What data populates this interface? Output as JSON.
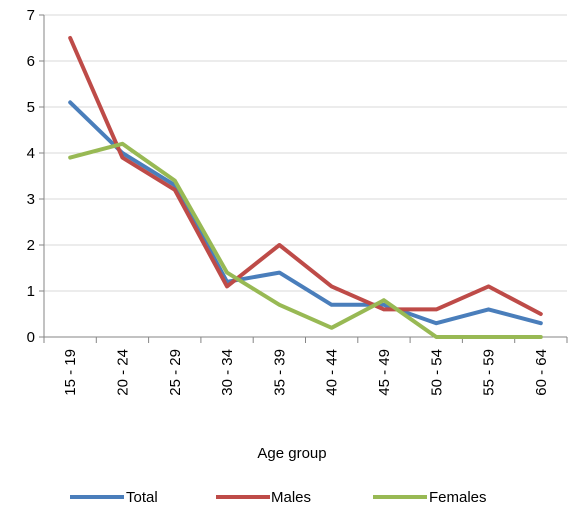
{
  "chart_data": {
    "type": "line",
    "categories": [
      "15 - 19",
      "20 - 24",
      "25 - 29",
      "30 - 34",
      "35 - 39",
      "40 - 44",
      "45 - 49",
      "50 - 54",
      "55 - 59",
      "60 - 64"
    ],
    "series": [
      {
        "name": "Total",
        "color": "#4a7ebb",
        "values": [
          5.1,
          4.0,
          3.3,
          1.2,
          1.4,
          0.7,
          0.7,
          0.3,
          0.6,
          0.3
        ]
      },
      {
        "name": "Males",
        "color": "#be4b48",
        "values": [
          6.5,
          3.9,
          3.2,
          1.1,
          2.0,
          1.1,
          0.6,
          0.6,
          1.1,
          0.5
        ]
      },
      {
        "name": "Females",
        "color": "#98b954",
        "values": [
          3.9,
          4.2,
          3.4,
          1.4,
          0.7,
          0.2,
          0.8,
          0.0,
          0.0,
          0.0
        ]
      }
    ],
    "xlabel": "Age group",
    "ylabel": "",
    "ylim": [
      0,
      7
    ],
    "yticks": [
      0,
      1,
      2,
      3,
      4,
      5,
      6,
      7
    ],
    "grid": "horizontal",
    "legend_position": "bottom",
    "axis_color": "#868686",
    "grid_color": "#d9d9d9"
  }
}
